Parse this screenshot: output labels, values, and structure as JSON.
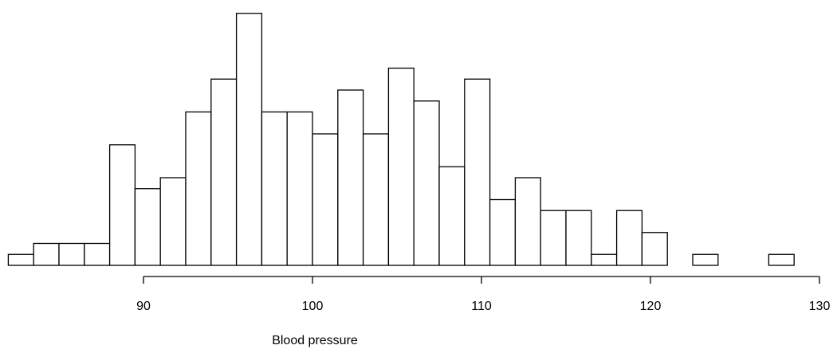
{
  "chart_data": {
    "type": "bar",
    "subtype": "histogram",
    "title": "",
    "xlabel": "Blood pressure",
    "ylabel": "",
    "bin_start": 82,
    "bin_width": 1.5,
    "counts": [
      1,
      2,
      2,
      2,
      11,
      7,
      8,
      14,
      17,
      23,
      14,
      14,
      12,
      16,
      12,
      18,
      15,
      9,
      17,
      6,
      8,
      5,
      5,
      1,
      5,
      3,
      0,
      1,
      0,
      0,
      1
    ],
    "xlim": [
      82,
      130
    ],
    "x_ticks": [
      90,
      100,
      110,
      120,
      130
    ],
    "x_tick_labels": [
      "90",
      "100",
      "110",
      "120",
      "130"
    ],
    "bar_fill": "#ffffff",
    "bar_stroke": "#000000",
    "grid": false,
    "legend": "none",
    "y_axis_shown": false
  }
}
